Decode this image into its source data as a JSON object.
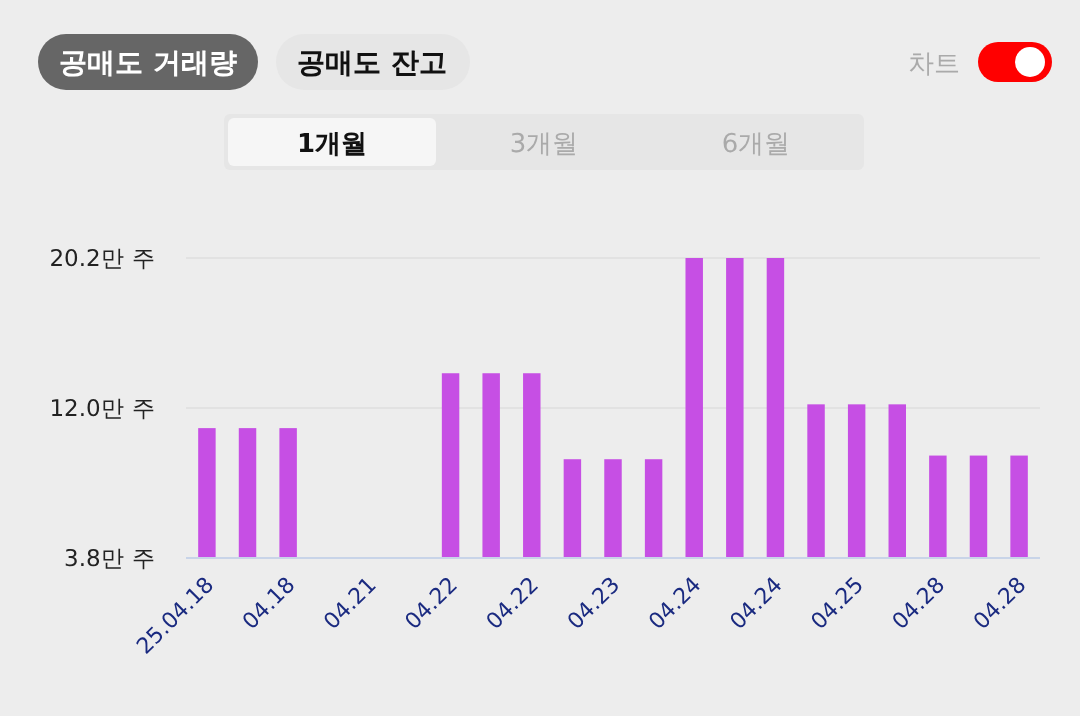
{
  "chart_data": {
    "type": "bar",
    "categories": [
      "25.04.18",
      null,
      "04.18",
      null,
      "04.21",
      null,
      "04.22",
      null,
      "04.22",
      null,
      "04.23",
      null,
      "04.24",
      null,
      "04.24",
      null,
      "04.25",
      null,
      "04.28",
      null,
      "04.28"
    ],
    "values": [
      10.9,
      10.9,
      10.9,
      3.8,
      3.8,
      3.8,
      13.9,
      13.9,
      13.9,
      9.2,
      9.2,
      9.2,
      20.2,
      20.2,
      20.2,
      12.2,
      12.2,
      12.2,
      9.4,
      9.4,
      9.4
    ],
    "color": "#c64fe4",
    "ylim": [
      3.8,
      20.2
    ],
    "yticks": [
      {
        "value": 3.8,
        "label": "3.8만 주"
      },
      {
        "value": 12.0,
        "label": "12.0만 주"
      },
      {
        "value": 20.2,
        "label": "20.2만 주"
      }
    ],
    "grid": "y",
    "annotations": [
      "공매도 거래량",
      "공매도 잔고",
      "차트",
      "1개월",
      "3개월",
      "6개월"
    ]
  }
}
